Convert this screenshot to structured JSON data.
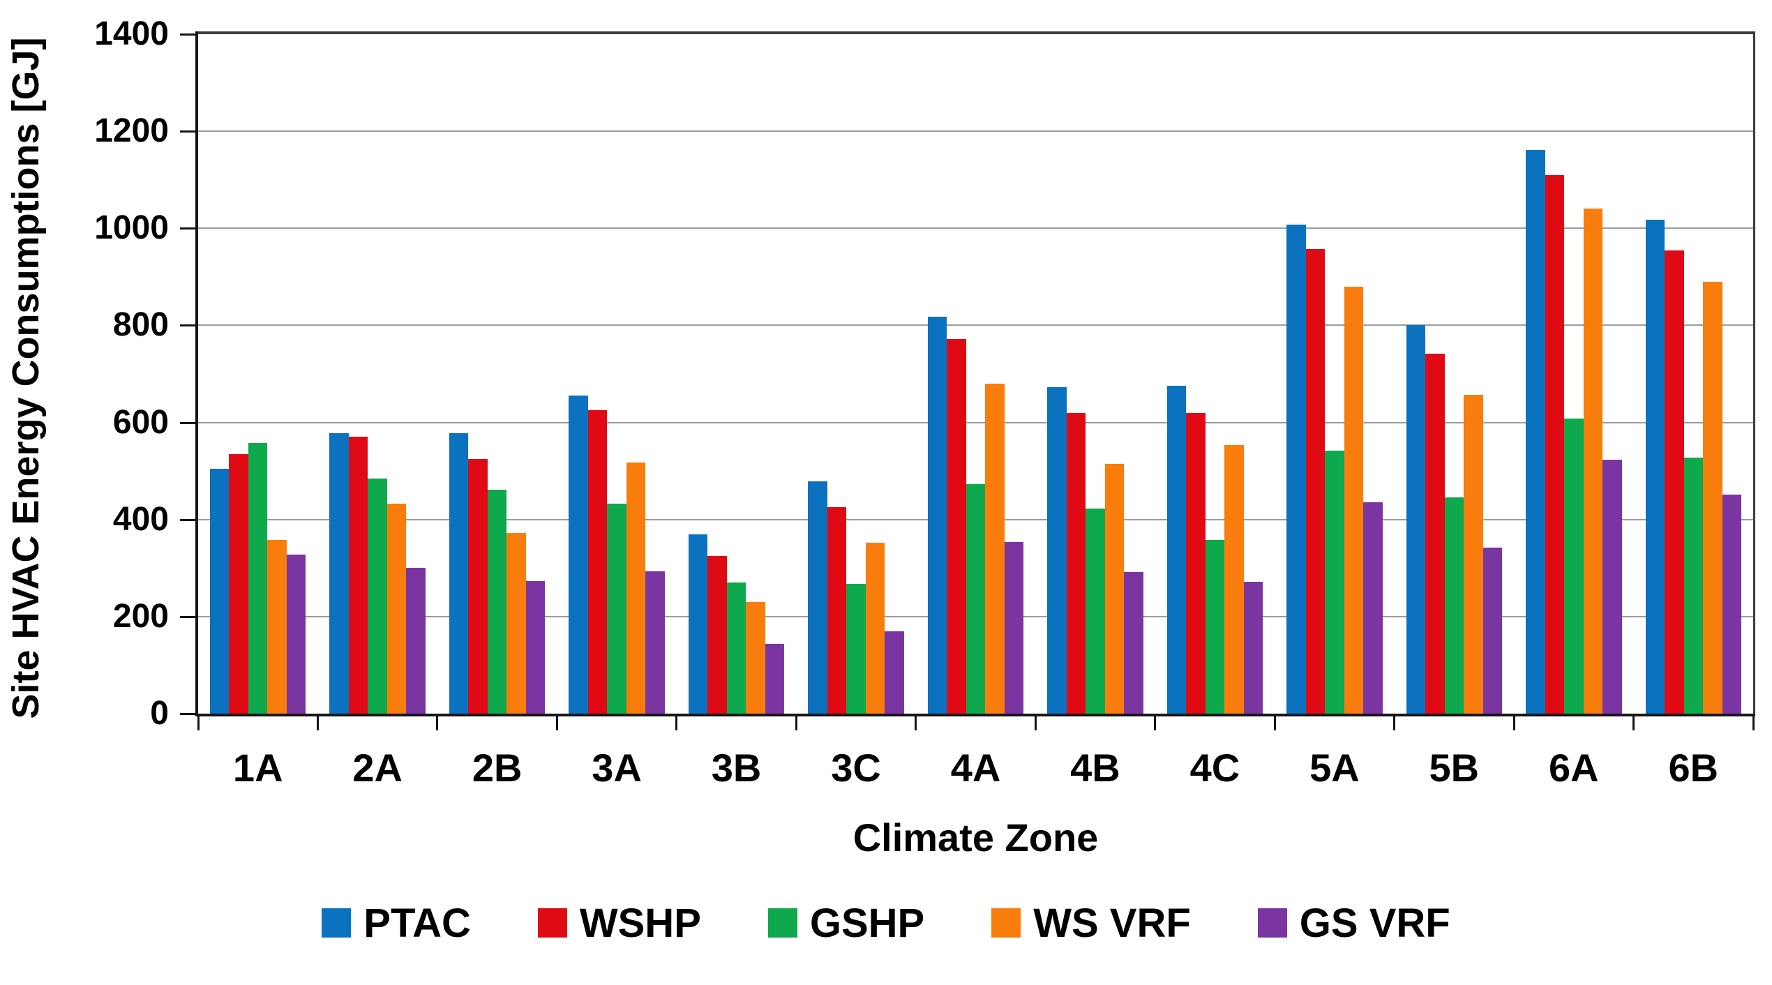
{
  "chart_data": {
    "type": "bar",
    "title": "",
    "xlabel": "Climate Zone",
    "ylabel": "Site HVAC Energy Consumptions [GJ]",
    "categories": [
      "1A",
      "2A",
      "2B",
      "3A",
      "3B",
      "3C",
      "4A",
      "4B",
      "4C",
      "5A",
      "5B",
      "6A",
      "6B"
    ],
    "series": [
      {
        "name": "PTAC",
        "color": "#0b72c0",
        "values": [
          505,
          578,
          578,
          655,
          370,
          478,
          818,
          672,
          675,
          1008,
          800,
          1162,
          1018
        ]
      },
      {
        "name": "WSHP",
        "color": "#e00a14",
        "values": [
          535,
          570,
          525,
          625,
          325,
          425,
          772,
          620,
          620,
          958,
          742,
          1110,
          955
        ]
      },
      {
        "name": "GSHP",
        "color": "#0ea84d",
        "values": [
          558,
          484,
          462,
          433,
          270,
          267,
          473,
          423,
          358,
          542,
          445,
          608,
          528
        ]
      },
      {
        "name": "WS VRF",
        "color": "#f97d0d",
        "values": [
          358,
          432,
          373,
          518,
          230,
          352,
          680,
          515,
          553,
          880,
          657,
          1040,
          890
        ]
      },
      {
        "name": "GS VRF",
        "color": "#7a35a3",
        "values": [
          328,
          300,
          273,
          293,
          144,
          170,
          353,
          292,
          272,
          435,
          342,
          523,
          452
        ]
      }
    ],
    "ylim": [
      0,
      1400
    ],
    "ytick_step": 200,
    "ytick_labels": [
      "0",
      "200",
      "400",
      "600",
      "800",
      "1000",
      "1200",
      "1400"
    ],
    "grid": true,
    "legend_position": "bottom"
  },
  "colors": {
    "gridline": "#9c9c9c",
    "plot_border": "#3c3c3c",
    "axis_line": "#161616",
    "text": "#000000",
    "background": "#ffffff"
  }
}
